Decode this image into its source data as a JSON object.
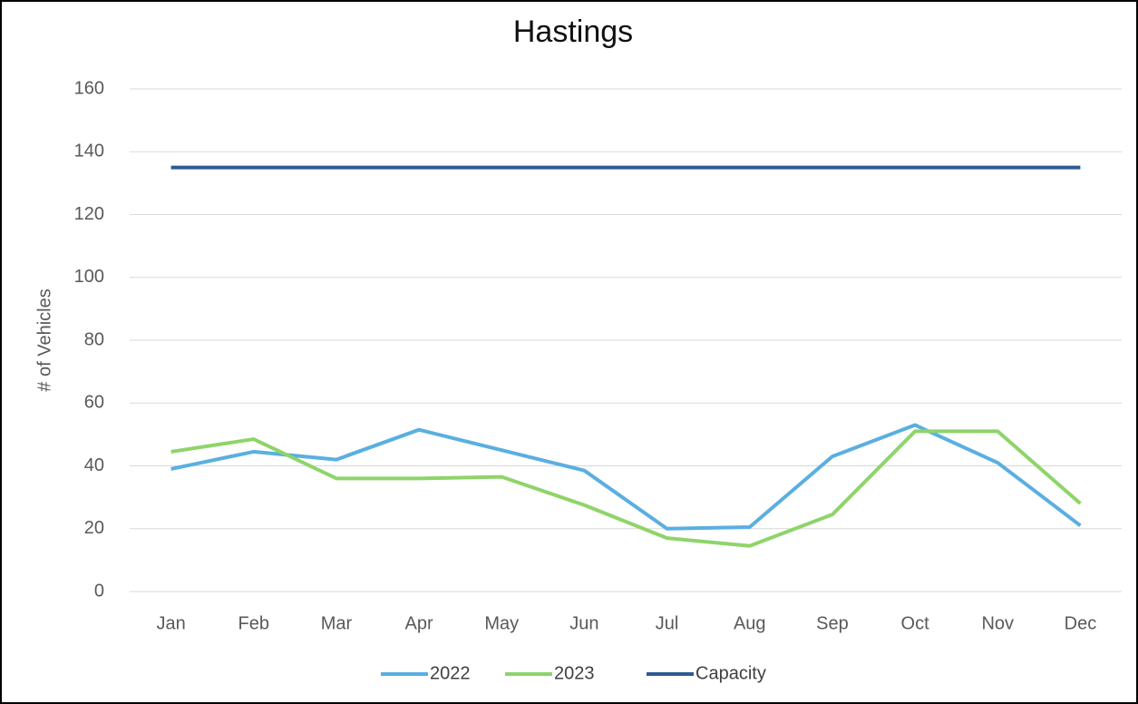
{
  "chart_data": {
    "type": "line",
    "title": "Hastings",
    "y_label": "# of Vehicles",
    "categories": [
      "Jan",
      "Feb",
      "Mar",
      "Apr",
      "May",
      "Jun",
      "Jul",
      "Aug",
      "Sep",
      "Oct",
      "Nov",
      "Dec"
    ],
    "series": [
      {
        "name": "2022",
        "color": "#5aafe0",
        "values": [
          39,
          44.5,
          42,
          51.5,
          45,
          38.5,
          20,
          20.5,
          43,
          53,
          41,
          21
        ]
      },
      {
        "name": "2023",
        "color": "#8ed46a",
        "values": [
          44.5,
          48.5,
          36,
          36,
          36.5,
          27.5,
          17,
          14.5,
          24.5,
          51,
          51,
          28
        ]
      },
      {
        "name": "Capacity",
        "color": "#2e5a94",
        "values": [
          135,
          135,
          135,
          135,
          135,
          135,
          135,
          135,
          135,
          135,
          135,
          135
        ]
      }
    ],
    "ylim": [
      0,
      160
    ],
    "yticks": [
      0,
      20,
      40,
      60,
      80,
      100,
      120,
      140,
      160
    ],
    "grid": true,
    "legend": "bottom"
  }
}
